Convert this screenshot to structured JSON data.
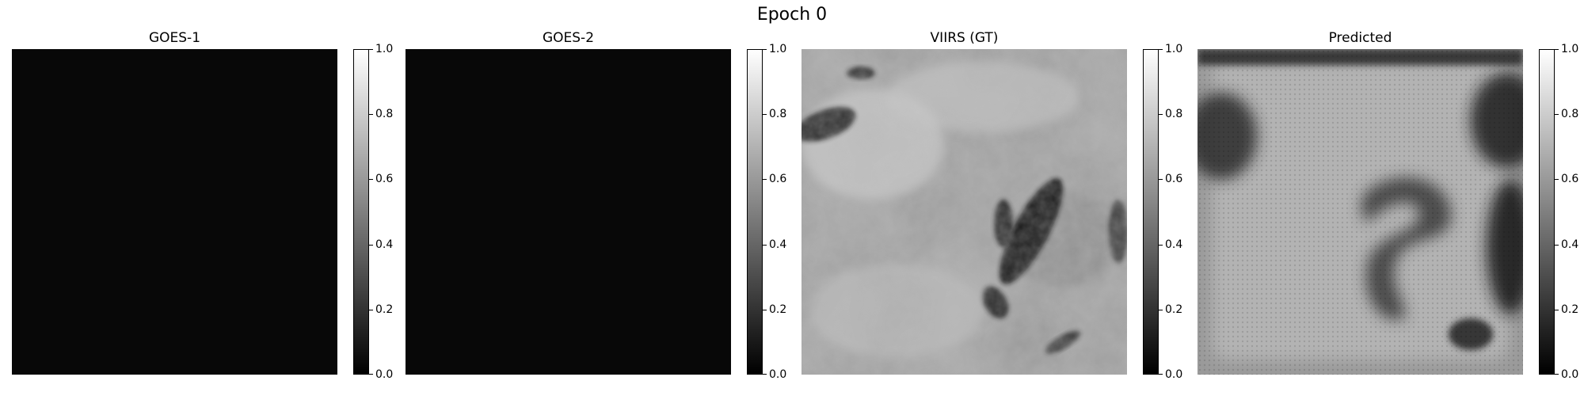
{
  "figure": {
    "title": "Epoch 0"
  },
  "chart_data": {
    "type": "heatmap",
    "title": "Epoch 0",
    "colormap": "gray",
    "panels": [
      {
        "title": "GOES-1",
        "colorbar": {
          "range": [
            0.0,
            1.0
          ],
          "ticks": [
            "0.0",
            "0.2",
            "0.4",
            "0.6",
            "0.8",
            "1.0"
          ]
        },
        "mean_value": 0.03
      },
      {
        "title": "GOES-2",
        "colorbar": {
          "range": [
            0.0,
            1.0
          ],
          "ticks": [
            "0.0",
            "0.2",
            "0.4",
            "0.6",
            "0.8",
            "1.0"
          ]
        },
        "mean_value": 0.03
      },
      {
        "title": "VIIRS (GT)",
        "colorbar": {
          "range": [
            0.0,
            1.0
          ],
          "ticks": [
            "0.0",
            "0.2",
            "0.4",
            "0.6",
            "0.8",
            "1.0"
          ]
        },
        "mean_value": 0.7
      },
      {
        "title": "Predicted",
        "colorbar": {
          "range": [
            0.0,
            1.0
          ],
          "ticks": [
            "0.0",
            "0.2",
            "0.4",
            "0.6",
            "0.8",
            "1.0"
          ]
        },
        "mean_value": 0.68
      }
    ]
  }
}
